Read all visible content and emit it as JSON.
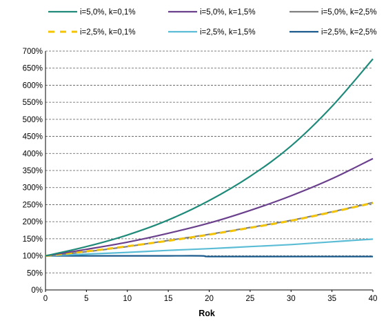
{
  "chart_data": {
    "type": "line",
    "title": "",
    "xlabel": "Rok",
    "ylabel": "",
    "xlim": [
      0,
      40
    ],
    "ylim": [
      0,
      700
    ],
    "x_ticks": [
      0,
      5,
      10,
      15,
      20,
      25,
      30,
      35,
      40
    ],
    "y_ticks": [
      0,
      50,
      100,
      150,
      200,
      250,
      300,
      350,
      400,
      450,
      500,
      550,
      600,
      650,
      700
    ],
    "y_tick_labels": [
      "0%",
      "50%",
      "100%",
      "150%",
      "200%",
      "250%",
      "300%",
      "350%",
      "400%",
      "450%",
      "500%",
      "550%",
      "600%",
      "650%",
      "700%"
    ],
    "grid": "horizontal dashed",
    "legend_position": "top",
    "series": [
      {
        "name": "i=5,0%, k=0,1%",
        "color": "#1f8a7a",
        "style": "solid",
        "x": [
          0,
          5,
          10,
          15,
          20,
          25,
          30,
          35,
          40
        ],
        "y": [
          100,
          127,
          161,
          205,
          262,
          333,
          422,
          538,
          677
        ]
      },
      {
        "name": "i=5,0%, k=1,5%",
        "color": "#6a3f8c",
        "style": "solid",
        "x": [
          0,
          5,
          10,
          15,
          20,
          25,
          30,
          35,
          40
        ],
        "y": [
          100,
          119,
          140,
          166,
          196,
          233,
          276,
          326,
          385
        ]
      },
      {
        "name": "i=5,0%, k=2,5%",
        "color": "#7f7f7f",
        "style": "solid",
        "x": [
          0,
          5,
          10,
          15,
          20,
          25,
          30,
          35,
          40
        ],
        "y": [
          100,
          112,
          127,
          145,
          163,
          183,
          204,
          229,
          256
        ]
      },
      {
        "name": "i=2,5%, k=0,1%",
        "color": "#f5c400",
        "style": "dashed",
        "x": [
          0,
          5,
          10,
          15,
          20,
          25,
          30,
          35,
          40
        ],
        "y": [
          100,
          113,
          128,
          144,
          162,
          182,
          203,
          228,
          255
        ]
      },
      {
        "name": "i=2,5%, k=1,5%",
        "color": "#5bbcd6",
        "style": "solid",
        "x": [
          0,
          5,
          10,
          15,
          20,
          25,
          30,
          35,
          40
        ],
        "y": [
          100,
          105,
          110,
          116,
          121,
          127,
          133,
          141,
          149
        ]
      },
      {
        "name": "i=2,5%, k=2,5%",
        "color": "#1b5a8c",
        "style": "solid",
        "x": [
          0,
          5,
          10,
          15,
          19,
          20,
          25,
          30,
          35,
          40
        ],
        "y": [
          100,
          100,
          100,
          100,
          100,
          98,
          98,
          98,
          98,
          98
        ]
      }
    ]
  }
}
